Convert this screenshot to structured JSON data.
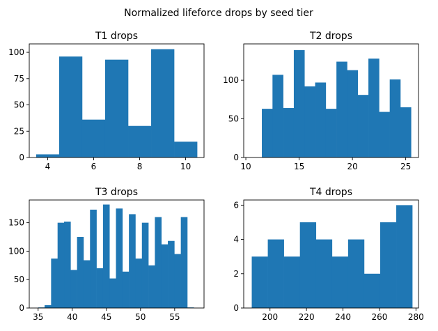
{
  "figure": {
    "suptitle": "Normalized lifeforce drops by seed tier"
  },
  "chart_data": [
    {
      "type": "bar",
      "subtype": "histogram",
      "title": "T1 drops",
      "xlabel": "",
      "ylabel": "",
      "xlim": [
        3.2,
        10.8
      ],
      "ylim": [
        0,
        108
      ],
      "xticks": [
        4,
        6,
        8,
        10
      ],
      "yticks": [
        0,
        25,
        50,
        75,
        100
      ],
      "bin_edges": [
        3.5,
        4.5,
        5.5,
        6.5,
        7.5,
        8.5,
        9.5,
        10.5
      ],
      "counts": [
        3,
        96,
        36,
        93,
        30,
        103,
        15
      ],
      "color": "#1f77b4"
    },
    {
      "type": "bar",
      "subtype": "histogram",
      "title": "T2 drops",
      "xlabel": "",
      "ylabel": "",
      "xlim": [
        9.8,
        26.2
      ],
      "ylim": [
        0,
        147
      ],
      "xticks": [
        10,
        15,
        20,
        25
      ],
      "yticks": [
        0,
        50,
        100
      ],
      "bin_edges": [
        11.5,
        12.5,
        13.5,
        14.5,
        15.5,
        16.5,
        17.5,
        18.5,
        19.5,
        20.5,
        21.5,
        22.5,
        23.5,
        24.5,
        25.5
      ],
      "counts": [
        63,
        107,
        64,
        139,
        92,
        97,
        63,
        124,
        113,
        81,
        128,
        59,
        101,
        65
      ],
      "color": "#1f77b4"
    },
    {
      "type": "bar",
      "subtype": "histogram",
      "title": "T3 drops",
      "xlabel": "",
      "ylabel": "",
      "xlim": [
        33.7,
        59.3
      ],
      "ylim": [
        0,
        190
      ],
      "xticks": [
        35,
        40,
        45,
        50,
        55
      ],
      "yticks": [
        0,
        50,
        100,
        150
      ],
      "bin_edges": [
        35.0,
        35.95,
        36.9,
        37.85,
        38.8,
        39.75,
        40.7,
        41.65,
        42.6,
        43.55,
        44.5,
        45.45,
        46.4,
        47.35,
        48.3,
        49.25,
        50.2,
        51.15,
        52.1,
        53.05,
        54.0,
        54.95,
        55.9,
        56.85,
        57.8,
        58.75
      ],
      "counts": [
        1,
        5,
        87,
        150,
        152,
        67,
        125,
        84,
        173,
        70,
        182,
        52,
        175,
        64,
        165,
        87,
        150,
        75,
        160,
        112,
        118,
        95,
        160,
        1,
        0
      ],
      "color": "#1f77b4"
    },
    {
      "type": "bar",
      "subtype": "histogram",
      "title": "T4 drops",
      "xlabel": "",
      "ylabel": "",
      "xlim": [
        185.6,
        281.4
      ],
      "ylim": [
        0,
        6.3
      ],
      "xticks": [
        200,
        220,
        240,
        260,
        280
      ],
      "yticks": [
        0,
        2,
        4,
        6
      ],
      "bin_edges": [
        190,
        198.8,
        207.6,
        216.4,
        225.2,
        234.0,
        242.8,
        251.6,
        260.4,
        269.2,
        278
      ],
      "counts": [
        3,
        4,
        3,
        5,
        4,
        3,
        4,
        2,
        5,
        6
      ],
      "color": "#1f77b4"
    }
  ]
}
